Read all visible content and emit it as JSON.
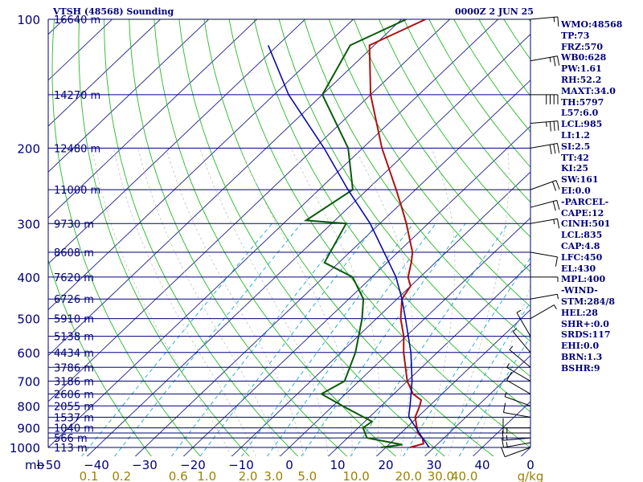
{
  "header": {
    "station": "VTSH (48568) Sounding",
    "time": "0000Z  2 JUN 25"
  },
  "indices": [
    "WMO:48568",
    "TP:73",
    "FRZ:570",
    "WB0:628",
    "PW:1.61",
    "RH:52.2",
    "MAXT:34.0",
    "TH:5797",
    "L57:6.0",
    "LCL:985",
    "LI:1.2",
    "SI:2.5",
    "TT:42",
    "KI:25",
    "SW:161",
    "EI:0.0",
    "-PARCEL-",
    "CAPE:12",
    "CINH:501",
    "LCL:835",
    "CAP:4.8",
    "LFC:450",
    "EL:430",
    "MPL:400",
    "-WIND-",
    "STM:284/8",
    "HEL:28",
    "SHR+:0.0",
    "SRDS:117",
    "EHI:0.0",
    "BRN:1.3",
    "BSHR:9"
  ],
  "colors": {
    "isobar": "#00007a",
    "isotherm": "#1e1e8c",
    "dry_adiabat": "#26b826",
    "moist_adiabat": "#c8c8c8",
    "mixing_ratio": "#1aa6c9",
    "temperature": "#b01010",
    "dewpoint": "#0a5a0a",
    "parcel": "#0a0aa8",
    "wind": "#000000",
    "text": "#00007a",
    "ratio_text": "#9c8200"
  },
  "chart_data": {
    "type": "line",
    "title": "VTSH (48568) Sounding",
    "xlabel": "",
    "ylabel": "mb",
    "pressure_range": [
      1000,
      100
    ],
    "pressure_ticks": [
      100,
      200,
      300,
      400,
      500,
      600,
      700,
      800,
      900,
      1000
    ],
    "temperature_ticks": [
      -50,
      -40,
      -30,
      -20,
      -10,
      0,
      10,
      20,
      30,
      40
    ],
    "isobar_levels": [
      100,
      150,
      200,
      250,
      300,
      350,
      400,
      450,
      500,
      550,
      600,
      650,
      700,
      750,
      800,
      850,
      900,
      925,
      950,
      1000
    ],
    "height_labels": [
      {
        "p": 100,
        "label": "16640 m"
      },
      {
        "p": 150,
        "label": "14270 m"
      },
      {
        "p": 200,
        "label": "12480 m"
      },
      {
        "p": 250,
        "label": "11000 m"
      },
      {
        "p": 300,
        "label": "9730 m"
      },
      {
        "p": 350,
        "label": "8608 m"
      },
      {
        "p": 400,
        "label": "7620 m"
      },
      {
        "p": 450,
        "label": "6726 m"
      },
      {
        "p": 500,
        "label": "5910 m"
      },
      {
        "p": 550,
        "label": "5138 m"
      },
      {
        "p": 600,
        "label": "4434 m"
      },
      {
        "p": 650,
        "label": "3786 m"
      },
      {
        "p": 700,
        "label": "3186 m"
      },
      {
        "p": 750,
        "label": "2606 m"
      },
      {
        "p": 800,
        "label": "2055 m"
      },
      {
        "p": 850,
        "label": "1537 m"
      },
      {
        "p": 900,
        "label": "1040 m"
      },
      {
        "p": 950,
        "label": "566 m"
      },
      {
        "p": 1000,
        "label": "113 m"
      }
    ],
    "mixing_ratio_labels": [
      "0.1",
      "0.2",
      "0.6",
      "1.0",
      "2.0",
      "3.0",
      "5.0",
      "10.0",
      "20.0",
      "30.0",
      "40.0",
      "g/kg"
    ],
    "mixing_ratio_values": [
      0.1,
      0.2,
      0.6,
      1.0,
      2.0,
      3.0,
      5.0,
      10.0,
      20.0,
      30.0,
      40.0
    ],
    "series": [
      {
        "key": "temperature",
        "values": [
          {
            "p": 1000,
            "t": 25.0
          },
          {
            "p": 980,
            "t": 27.0
          },
          {
            "p": 950,
            "t": 25.5
          },
          {
            "p": 925,
            "t": 23.5
          },
          {
            "p": 900,
            "t": 22.2
          },
          {
            "p": 850,
            "t": 19.5
          },
          {
            "p": 800,
            "t": 18.0
          },
          {
            "p": 775,
            "t": 17.0
          },
          {
            "p": 750,
            "t": 14.0
          },
          {
            "p": 700,
            "t": 10.0
          },
          {
            "p": 600,
            "t": 3.0
          },
          {
            "p": 550,
            "t": -0.5
          },
          {
            "p": 500,
            "t": -5.0
          },
          {
            "p": 450,
            "t": -9.0
          },
          {
            "p": 420,
            "t": -10.0
          },
          {
            "p": 400,
            "t": -12.5
          },
          {
            "p": 370,
            "t": -15.0
          },
          {
            "p": 350,
            "t": -17.0
          },
          {
            "p": 300,
            "t": -24.5
          },
          {
            "p": 275,
            "t": -29.0
          },
          {
            "p": 250,
            "t": -34.0
          },
          {
            "p": 200,
            "t": -46.0
          },
          {
            "p": 150,
            "t": -60.0
          },
          {
            "p": 115,
            "t": -71.0
          },
          {
            "p": 100,
            "t": -65.0
          }
        ]
      },
      {
        "key": "dewpoint",
        "values": [
          {
            "p": 1000,
            "t": 19.0
          },
          {
            "p": 985,
            "t": 22.8
          },
          {
            "p": 950,
            "t": 14.0
          },
          {
            "p": 900,
            "t": 11.0
          },
          {
            "p": 870,
            "t": 11.5
          },
          {
            "p": 800,
            "t": 2.0
          },
          {
            "p": 750,
            "t": -5.0
          },
          {
            "p": 700,
            "t": -3.0
          },
          {
            "p": 600,
            "t": -7.0
          },
          {
            "p": 500,
            "t": -13.0
          },
          {
            "p": 450,
            "t": -17.0
          },
          {
            "p": 400,
            "t": -24.0
          },
          {
            "p": 370,
            "t": -33.0
          },
          {
            "p": 300,
            "t": -37.0
          },
          {
            "p": 295,
            "t": -46.0
          },
          {
            "p": 250,
            "t": -43.0
          },
          {
            "p": 200,
            "t": -53.0
          },
          {
            "p": 150,
            "t": -70.0
          },
          {
            "p": 115,
            "t": -75.0
          },
          {
            "p": 100,
            "t": -69.0
          }
        ]
      },
      {
        "key": "parcel",
        "values": [
          {
            "p": 1000,
            "t": 29.0
          },
          {
            "p": 950,
            "t": 25.5
          },
          {
            "p": 900,
            "t": 22.0
          },
          {
            "p": 850,
            "t": 18.2
          },
          {
            "p": 835,
            "t": 17.5
          },
          {
            "p": 800,
            "t": 16.0
          },
          {
            "p": 700,
            "t": 11.0
          },
          {
            "p": 600,
            "t": 4.5
          },
          {
            "p": 500,
            "t": -4.0
          },
          {
            "p": 450,
            "t": -9.0
          },
          {
            "p": 400,
            "t": -15.0
          },
          {
            "p": 300,
            "t": -32.0
          },
          {
            "p": 250,
            "t": -44.0
          },
          {
            "p": 200,
            "t": -58.0
          },
          {
            "p": 150,
            "t": -77.0
          },
          {
            "p": 115,
            "t": -92.0
          }
        ]
      }
    ],
    "wind_barbs": [
      {
        "p": 1000,
        "dir": 250,
        "spd": 10
      },
      {
        "p": 975,
        "dir": 260,
        "spd": 15
      },
      {
        "p": 950,
        "dir": 265,
        "spd": 15
      },
      {
        "p": 925,
        "dir": 270,
        "spd": 15
      },
      {
        "p": 900,
        "dir": 270,
        "spd": 10
      },
      {
        "p": 850,
        "dir": 280,
        "spd": 10
      },
      {
        "p": 800,
        "dir": 290,
        "spd": 5
      },
      {
        "p": 750,
        "dir": 300,
        "spd": 10
      },
      {
        "p": 700,
        "dir": 300,
        "spd": 5
      },
      {
        "p": 650,
        "dir": 310,
        "spd": 5
      },
      {
        "p": 600,
        "dir": 320,
        "spd": 5
      },
      {
        "p": 550,
        "dir": 330,
        "spd": 5
      },
      {
        "p": 500,
        "dir": 60,
        "spd": 5
      },
      {
        "p": 450,
        "dir": 80,
        "spd": 5
      },
      {
        "p": 400,
        "dir": 90,
        "spd": 5
      },
      {
        "p": 350,
        "dir": 100,
        "spd": 10
      },
      {
        "p": 300,
        "dir": 80,
        "spd": 15
      },
      {
        "p": 275,
        "dir": 75,
        "spd": 20
      },
      {
        "p": 250,
        "dir": 70,
        "spd": 20
      },
      {
        "p": 200,
        "dir": 80,
        "spd": 30
      },
      {
        "p": 175,
        "dir": 85,
        "spd": 35
      },
      {
        "p": 150,
        "dir": 90,
        "spd": 40
      },
      {
        "p": 125,
        "dir": 80,
        "spd": 25
      },
      {
        "p": 100,
        "dir": 85,
        "spd": 15
      }
    ]
  }
}
